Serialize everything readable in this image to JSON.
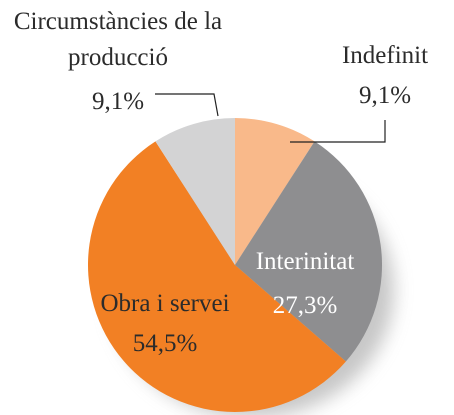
{
  "chart_data": {
    "type": "pie",
    "categories": [
      "Indefinit",
      "Interinitat",
      "Obra i servei",
      "Circumstàncies de la producció"
    ],
    "values": [
      9.1,
      27.3,
      54.5,
      9.1
    ],
    "value_labels": [
      "9,1%",
      "27,3%",
      "54,5%",
      "9,1%"
    ],
    "colors": [
      "#f9b98a",
      "#8e8e90",
      "#f28024",
      "#d3d3d4"
    ]
  }
}
